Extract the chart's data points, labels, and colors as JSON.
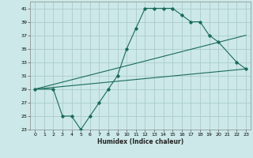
{
  "xlabel": "Humidex (Indice chaleur)",
  "ylabel": "",
  "bg_color": "#cce8e8",
  "grid_color": "#aacccc",
  "line_color": "#1a6b5a",
  "xlim": [
    -0.5,
    23.5
  ],
  "ylim": [
    23,
    42
  ],
  "xticks": [
    0,
    1,
    2,
    3,
    4,
    5,
    6,
    7,
    8,
    9,
    10,
    11,
    12,
    13,
    14,
    15,
    16,
    17,
    18,
    19,
    20,
    21,
    22,
    23
  ],
  "yticks": [
    23,
    25,
    27,
    29,
    31,
    33,
    35,
    37,
    39,
    41
  ],
  "line1_x": [
    0,
    2,
    3,
    4,
    5,
    6,
    7,
    8,
    9,
    10,
    11,
    12,
    13,
    14,
    15,
    16,
    17,
    18,
    19,
    20,
    22,
    23
  ],
  "line1_y": [
    29,
    29,
    25,
    25,
    23,
    25,
    27,
    29,
    31,
    35,
    38,
    41,
    41,
    41,
    41,
    40,
    39,
    39,
    37,
    36,
    33,
    32
  ],
  "line2_x": [
    0,
    23
  ],
  "line2_y": [
    29,
    32
  ],
  "line3_x": [
    0,
    23
  ],
  "line3_y": [
    29,
    37
  ]
}
